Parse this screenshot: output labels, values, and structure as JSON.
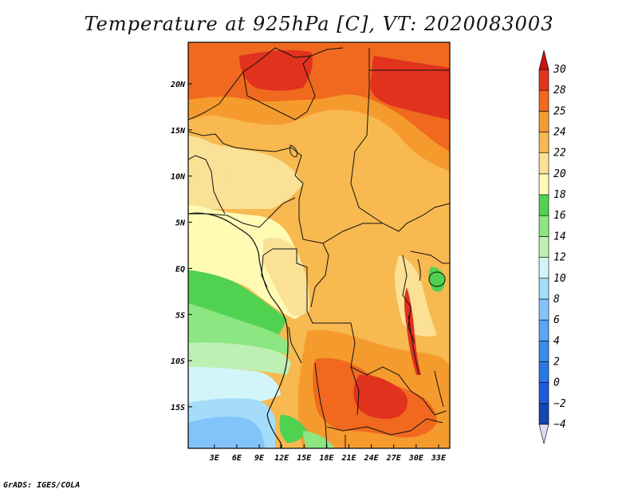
{
  "title": "Temperature at 925hPa [C], VT: 2020083003",
  "credit": "GrADS: IGES/COLA",
  "chart_data": {
    "type": "heatmap",
    "variable": "Temperature at 925hPa",
    "units": "C",
    "valid_time": "2020083003",
    "xlim": [
      -0.5,
      34.5
    ],
    "ylim": [
      -19.5,
      24.5
    ],
    "x_ticks": [
      {
        "value": 3,
        "label": "3E"
      },
      {
        "value": 6,
        "label": "6E"
      },
      {
        "value": 9,
        "label": "9E"
      },
      {
        "value": 12,
        "label": "12E"
      },
      {
        "value": 15,
        "label": "15E"
      },
      {
        "value": 18,
        "label": "18E"
      },
      {
        "value": 21,
        "label": "21E"
      },
      {
        "value": 24,
        "label": "24E"
      },
      {
        "value": 27,
        "label": "27E"
      },
      {
        "value": 30,
        "label": "30E"
      },
      {
        "value": 33,
        "label": "33E"
      }
    ],
    "y_ticks": [
      {
        "value": 20,
        "label": "20N"
      },
      {
        "value": 15,
        "label": "15N"
      },
      {
        "value": 10,
        "label": "10N"
      },
      {
        "value": 5,
        "label": "5N"
      },
      {
        "value": 0,
        "label": "EQ"
      },
      {
        "value": -5,
        "label": "5S"
      },
      {
        "value": -10,
        "label": "10S"
      },
      {
        "value": -15,
        "label": "15S"
      }
    ],
    "colorbar": {
      "levels": [
        -4,
        -2,
        0,
        2,
        4,
        6,
        8,
        10,
        12,
        14,
        16,
        18,
        20,
        22,
        24,
        25,
        28,
        30
      ],
      "colors": [
        "#0a1466",
        "#1446b4",
        "#1e5adc",
        "#2878e6",
        "#3c8cf0",
        "#5aa5f5",
        "#82c3fa",
        "#a5dcfa",
        "#d2f5fa",
        "#bef0b4",
        "#8ce682",
        "#50d250",
        "#fffab4",
        "#fae196",
        "#f7b950",
        "#f59b2d",
        "#f0691e",
        "#e1321e",
        "#c81414"
      ],
      "low_color": "#dcdcf5"
    },
    "field_samples": [
      {
        "lon": 2,
        "lat": 23,
        "value": 27
      },
      {
        "lon": 8,
        "lat": 20,
        "value": 29
      },
      {
        "lon": 30,
        "lat": 21,
        "value": 29
      },
      {
        "lon": 20,
        "lat": 17,
        "value": 26
      },
      {
        "lon": 8,
        "lat": 14,
        "value": 22
      },
      {
        "lon": 3,
        "lat": 7,
        "value": 19
      },
      {
        "lon": 24,
        "lat": 5,
        "value": 22
      },
      {
        "lon": 3,
        "lat": 1,
        "value": 18
      },
      {
        "lon": 5,
        "lat": -4,
        "value": 16
      },
      {
        "lon": 5,
        "lat": -8,
        "value": 13
      },
      {
        "lon": 2,
        "lat": -13,
        "value": 10
      },
      {
        "lon": 5,
        "lat": -17,
        "value": 7
      },
      {
        "lon": 22,
        "lat": -4,
        "value": 22
      },
      {
        "lon": 20,
        "lat": -12,
        "value": 25
      },
      {
        "lon": 24,
        "lat": -16,
        "value": 26
      },
      {
        "lon": 33,
        "lat": -10,
        "value": 21
      }
    ]
  }
}
